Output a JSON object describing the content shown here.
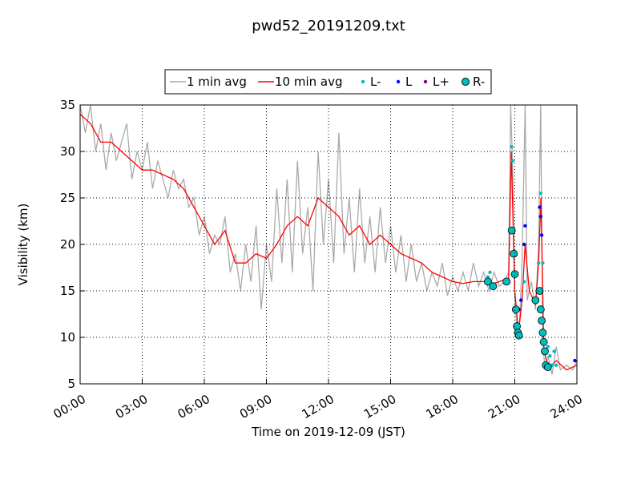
{
  "chart_data": {
    "type": "line",
    "title": "pwd52_20191209.txt",
    "x_label": "Time on 2019-12-09 (JST)",
    "y_label": "Visibility (km)",
    "xlim": [
      0,
      24
    ],
    "ylim": [
      5,
      35
    ],
    "xticks": [
      {
        "value": 0,
        "label": "00:00"
      },
      {
        "value": 3,
        "label": "03:00"
      },
      {
        "value": 6,
        "label": "06:00"
      },
      {
        "value": 9,
        "label": "09:00"
      },
      {
        "value": 12,
        "label": "12:00"
      },
      {
        "value": 15,
        "label": "15:00"
      },
      {
        "value": 18,
        "label": "18:00"
      },
      {
        "value": 21,
        "label": "21:00"
      },
      {
        "value": 24,
        "label": "24:00"
      }
    ],
    "yticks": [
      5,
      10,
      15,
      20,
      25,
      30,
      35
    ],
    "grid": true,
    "legend": "top",
    "series": [
      {
        "name": "1 min avg",
        "kind": "line",
        "color": "#aaaaaa",
        "x": [
          0,
          0.25,
          0.5,
          0.75,
          1,
          1.25,
          1.5,
          1.75,
          2,
          2.25,
          2.5,
          2.75,
          3,
          3.25,
          3.5,
          3.75,
          4,
          4.25,
          4.5,
          4.75,
          5,
          5.25,
          5.5,
          5.75,
          6,
          6.25,
          6.5,
          6.75,
          7,
          7.25,
          7.5,
          7.75,
          8,
          8.25,
          8.5,
          8.75,
          9,
          9.25,
          9.5,
          9.75,
          10,
          10.25,
          10.5,
          10.75,
          11,
          11.25,
          11.5,
          11.75,
          12,
          12.25,
          12.5,
          12.75,
          13,
          13.25,
          13.5,
          13.75,
          14,
          14.25,
          14.5,
          14.75,
          15,
          15.25,
          15.5,
          15.75,
          16,
          16.25,
          16.5,
          16.75,
          17,
          17.25,
          17.5,
          17.75,
          18,
          18.25,
          18.5,
          18.75,
          19,
          19.25,
          19.5,
          19.75,
          20,
          20.25,
          20.5,
          20.7,
          20.8,
          20.9,
          21.0,
          21.1,
          21.2,
          21.35,
          21.5,
          21.6,
          21.8,
          22.0,
          22.15,
          22.25,
          22.35,
          22.45,
          22.6,
          22.8,
          23.0,
          23.2,
          23.5,
          23.8,
          24
        ],
        "values": [
          35,
          32,
          35,
          30,
          33,
          28,
          32,
          29,
          31,
          33,
          27,
          30,
          28,
          31,
          26,
          29,
          27,
          25,
          28,
          26,
          27,
          24,
          25,
          21,
          23,
          19,
          21,
          20,
          23,
          17,
          19,
          15,
          20,
          16,
          22,
          13,
          20,
          16,
          26,
          18,
          27,
          17,
          29,
          19,
          24,
          15,
          30,
          20,
          27,
          18,
          32,
          19,
          25,
          17,
          26,
          18,
          23,
          17,
          24,
          18,
          22,
          17,
          21,
          16,
          20,
          16,
          18,
          15,
          17,
          15.5,
          18,
          14.5,
          16.5,
          15,
          17,
          15,
          18,
          15.5,
          17,
          15,
          17,
          15.5,
          16,
          17,
          35,
          28,
          14,
          11,
          10,
          18,
          35,
          14,
          16,
          13,
          20,
          35,
          10,
          6.5,
          8,
          6,
          9,
          6.5,
          7,
          6.5,
          7.5
        ]
      },
      {
        "name": "10 min avg",
        "kind": "line",
        "color": "#ff0000",
        "x": [
          0,
          0.5,
          1,
          1.5,
          2,
          2.5,
          3,
          3.5,
          4,
          4.5,
          5,
          5.5,
          6,
          6.5,
          7,
          7.5,
          8,
          8.5,
          9,
          9.5,
          10,
          10.5,
          11,
          11.5,
          12,
          12.5,
          13,
          13.5,
          14,
          14.5,
          15,
          15.5,
          16,
          16.5,
          17,
          17.5,
          18,
          18.5,
          19,
          19.5,
          20,
          20.5,
          20.7,
          20.83,
          21.0,
          21.18,
          21.35,
          21.5,
          21.7,
          22.0,
          22.15,
          22.26,
          22.4,
          22.6,
          23.0,
          23.5,
          24
        ],
        "values": [
          34,
          33,
          31,
          31,
          30,
          29,
          28,
          28,
          27.5,
          27,
          26,
          24,
          22,
          20,
          21.5,
          18,
          18,
          19,
          18.5,
          20,
          22,
          23,
          22,
          25,
          24,
          23,
          21,
          22,
          20,
          21,
          20,
          19,
          18.5,
          18,
          17,
          16.5,
          16,
          15.8,
          16,
          16,
          15.8,
          16.2,
          16,
          30,
          15,
          10.5,
          14,
          20,
          15,
          13.5,
          18,
          25,
          9,
          6.5,
          7.5,
          6.5,
          7
        ]
      },
      {
        "name": "L-",
        "kind": "dot",
        "color": "#00bfbf",
        "x": [
          19.7,
          19.8,
          20.85,
          20.9,
          21.3,
          21.45,
          22.15,
          22.25,
          22.35,
          22.6,
          22.7,
          22.8,
          22.9,
          23.0
        ],
        "values": [
          16.5,
          17,
          30.5,
          29,
          14,
          16,
          18,
          25.5,
          18,
          9,
          8,
          7,
          8.5,
          7
        ]
      },
      {
        "name": "L",
        "kind": "dot",
        "color": "#0000ff",
        "x": [
          21.1,
          21.2,
          21.3,
          21.45,
          21.5,
          22.2,
          22.25,
          22.3,
          23.9
        ],
        "values": [
          11,
          13,
          14,
          20,
          22,
          24,
          23,
          21,
          7.5
        ]
      },
      {
        "name": "L+",
        "kind": "dot",
        "color": "#800080",
        "x": [],
        "values": []
      },
      {
        "name": "R-",
        "kind": "circle",
        "color": "#00bfbf",
        "x": [
          19.7,
          19.95,
          20.6,
          20.85,
          20.95,
          21.0,
          21.05,
          21.1,
          21.15,
          21.2,
          22.0,
          22.2,
          22.25,
          22.3,
          22.35,
          22.4,
          22.45,
          22.5,
          22.6
        ],
        "values": [
          16,
          15.5,
          16,
          21.5,
          19,
          16.8,
          13,
          11.2,
          10.5,
          10.2,
          14,
          15,
          13,
          11.8,
          10.5,
          9.5,
          8.5,
          7,
          6.8
        ]
      }
    ]
  }
}
